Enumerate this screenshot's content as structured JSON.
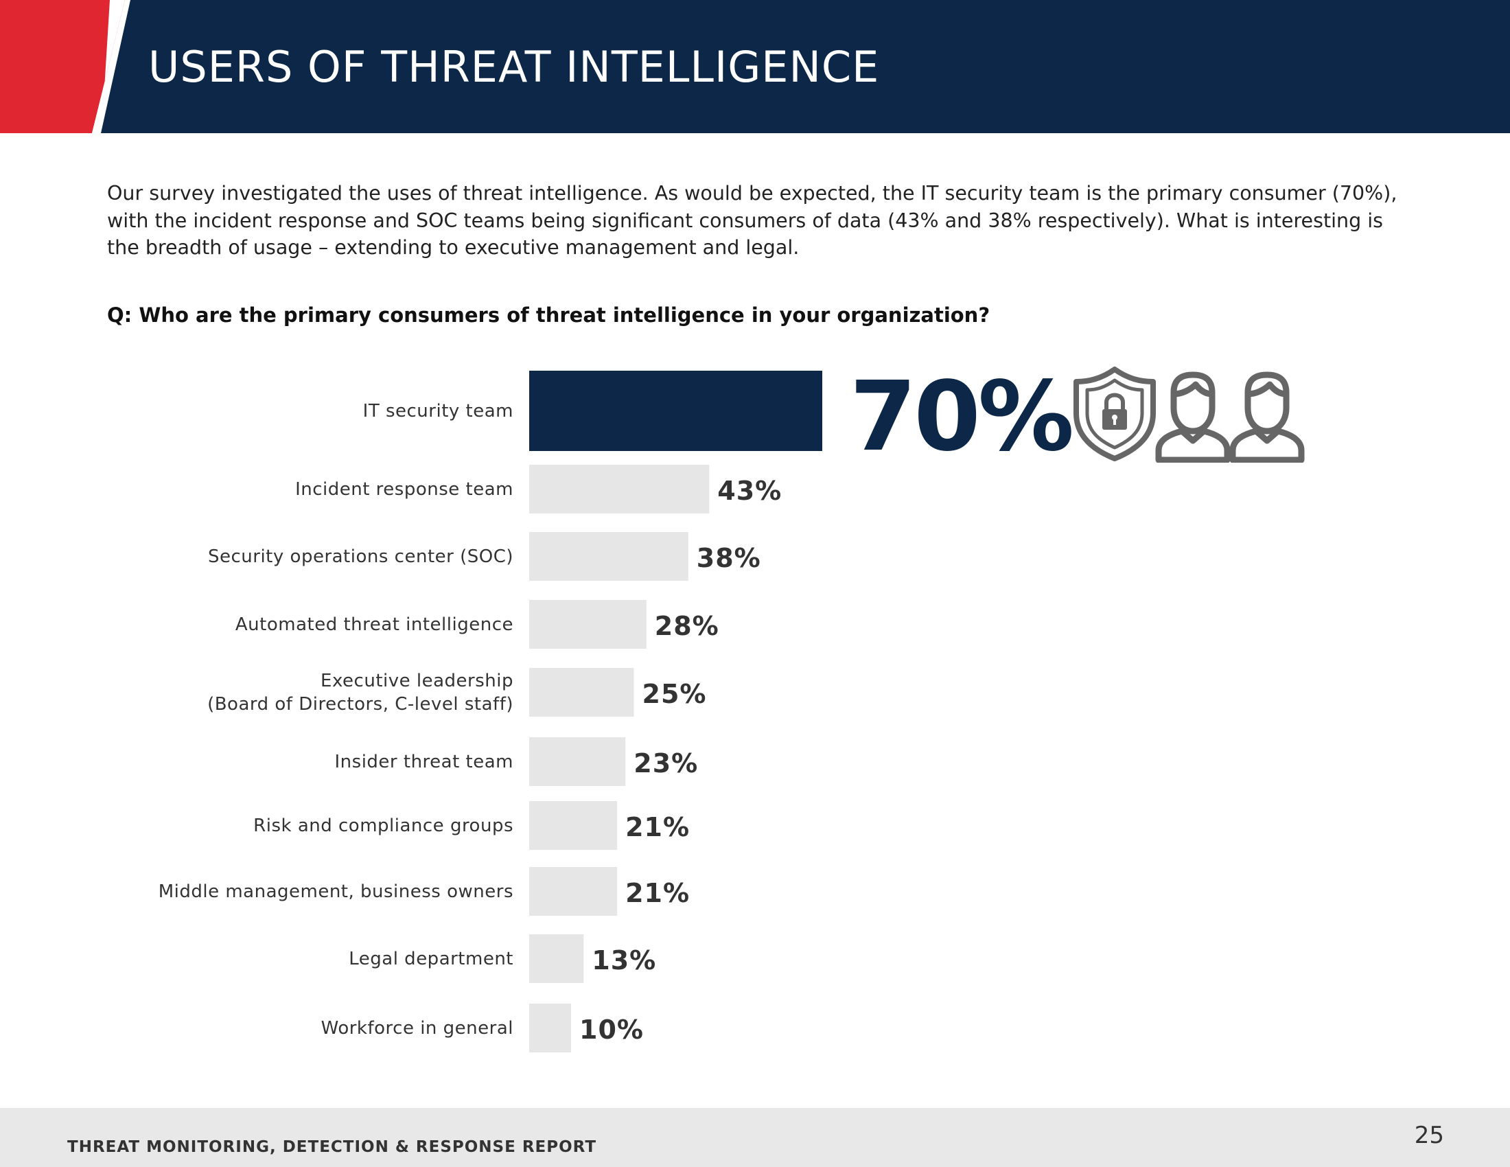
{
  "header": {
    "title": "USERS OF THREAT INTELLIGENCE",
    "accent_color": "#e02731",
    "bar_color": "#0c2747"
  },
  "intro": {
    "text": "Our survey investigated the uses of threat intelligence. As would be expected, the IT security team is the primary consumer (70%), with the incident response and SOC teams being significant consumers of data (43% and 38% respectively). What is interesting is the breadth of usage – extending to executive management and legal."
  },
  "question": {
    "text": "Q: Who are the primary consumers of threat intelligence in your organization?"
  },
  "chart_data": {
    "type": "bar",
    "orientation": "horizontal",
    "categories": [
      "IT security team",
      "Incident response team",
      "Security operations center (SOC)",
      "Automated threat intelligence",
      "Executive leadership\n(Board of Directors, C-level staff)",
      "Insider threat team",
      "Risk and compliance groups",
      "Middle management, business owners",
      "Legal department",
      "Workforce in general"
    ],
    "values": [
      70,
      43,
      38,
      28,
      25,
      23,
      21,
      21,
      13,
      10
    ],
    "value_labels": [
      "70%",
      "43%",
      "38%",
      "28%",
      "25%",
      "23%",
      "21%",
      "21%",
      "13%",
      "10%"
    ],
    "highlight_color": "#0c2747",
    "bar_color": "#e6e6e6",
    "value_color": "#333333",
    "highlight_icons": [
      "shield-lock-icon",
      "user-icon",
      "user-icon"
    ],
    "icon_color": "#666666"
  },
  "footer": {
    "text": "THREAT MONITORING, DETECTION & RESPONSE REPORT",
    "page_number": "25"
  }
}
